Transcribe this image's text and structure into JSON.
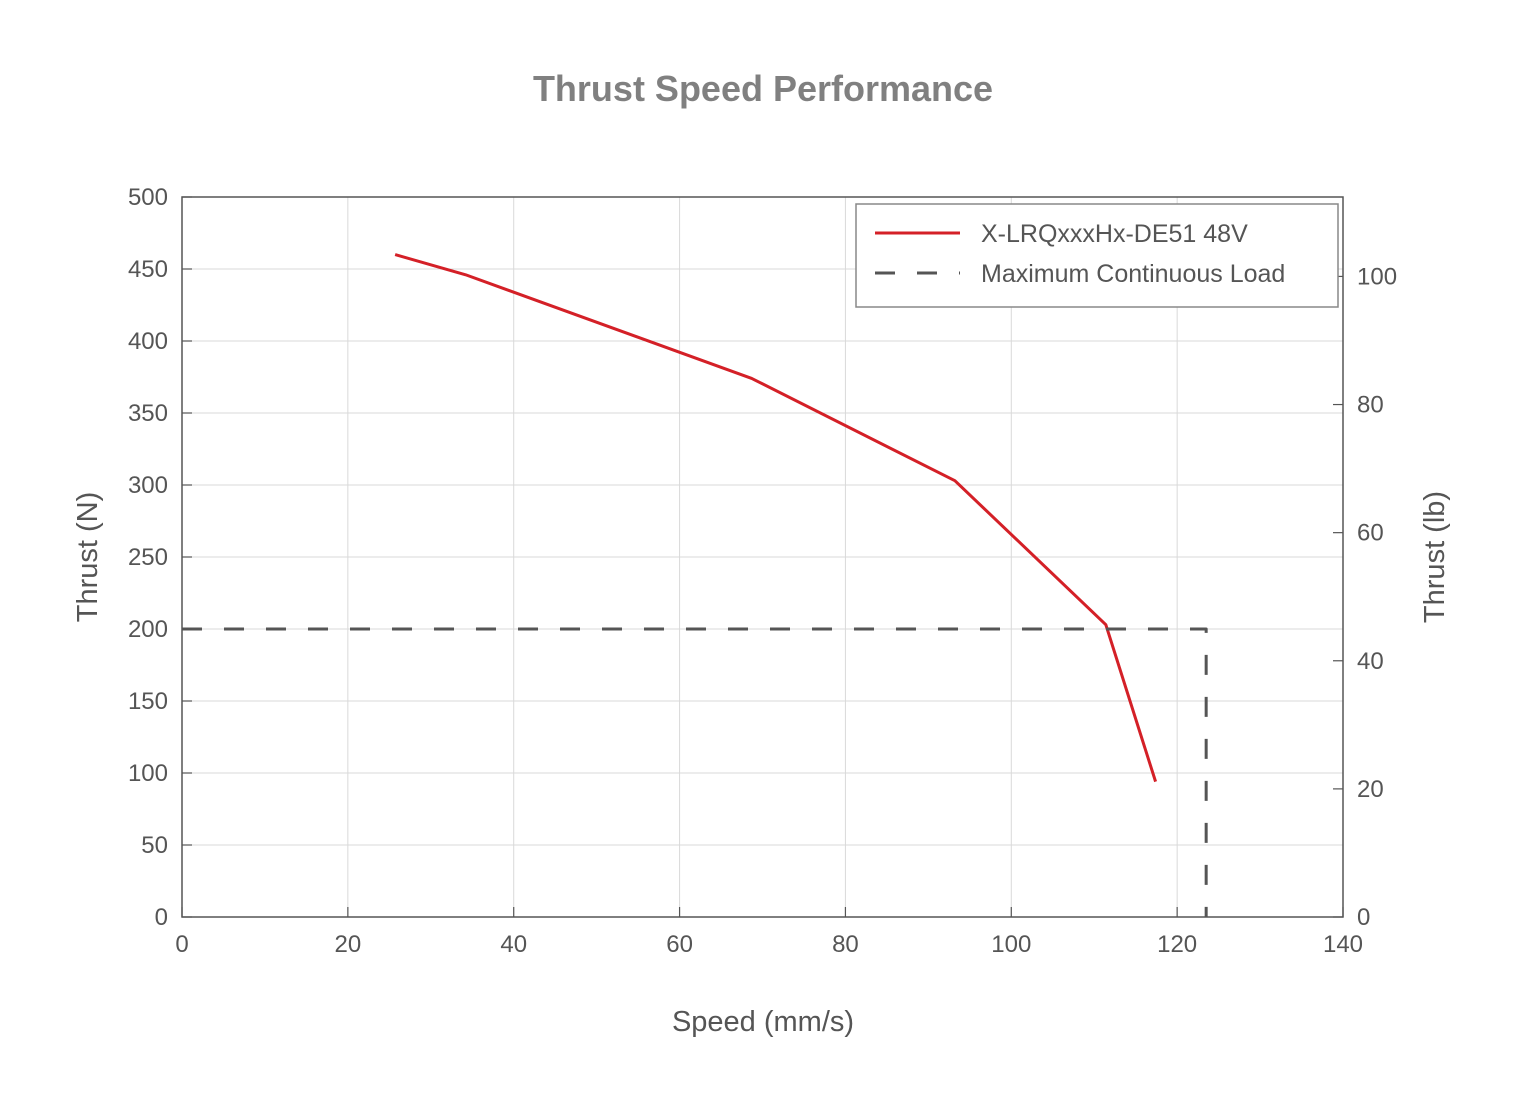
{
  "chart_data": {
    "type": "line",
    "title": "Thrust Speed Performance",
    "xlabel": "Speed (mm/s)",
    "ylabel": "Thrust (N)",
    "y2label": "Thrust (lb)",
    "xlim": [
      0,
      140
    ],
    "ylim": [
      0,
      500
    ],
    "y2lim": [
      0,
      112.4
    ],
    "xticks": [
      0,
      20,
      40,
      60,
      80,
      100,
      120,
      140
    ],
    "yticks": [
      0,
      50,
      100,
      150,
      200,
      250,
      300,
      350,
      400,
      450,
      500
    ],
    "y2ticks": [
      0,
      20,
      40,
      60,
      80,
      100
    ],
    "grid": true,
    "legend_position": "top-right",
    "series": [
      {
        "name": "X-LRQxxxHx-DE51 48V",
        "color": "#d42027",
        "style": "solid",
        "x": [
          25.7,
          34.2,
          68.7,
          93.2,
          111.4,
          117.4
        ],
        "y": [
          460,
          446,
          374,
          303,
          203,
          94
        ]
      },
      {
        "name": "Maximum Continuous Load",
        "color": "#555555",
        "style": "dashed",
        "x": [
          0,
          123.5,
          123.5
        ],
        "y": [
          200,
          200,
          0
        ]
      }
    ]
  }
}
